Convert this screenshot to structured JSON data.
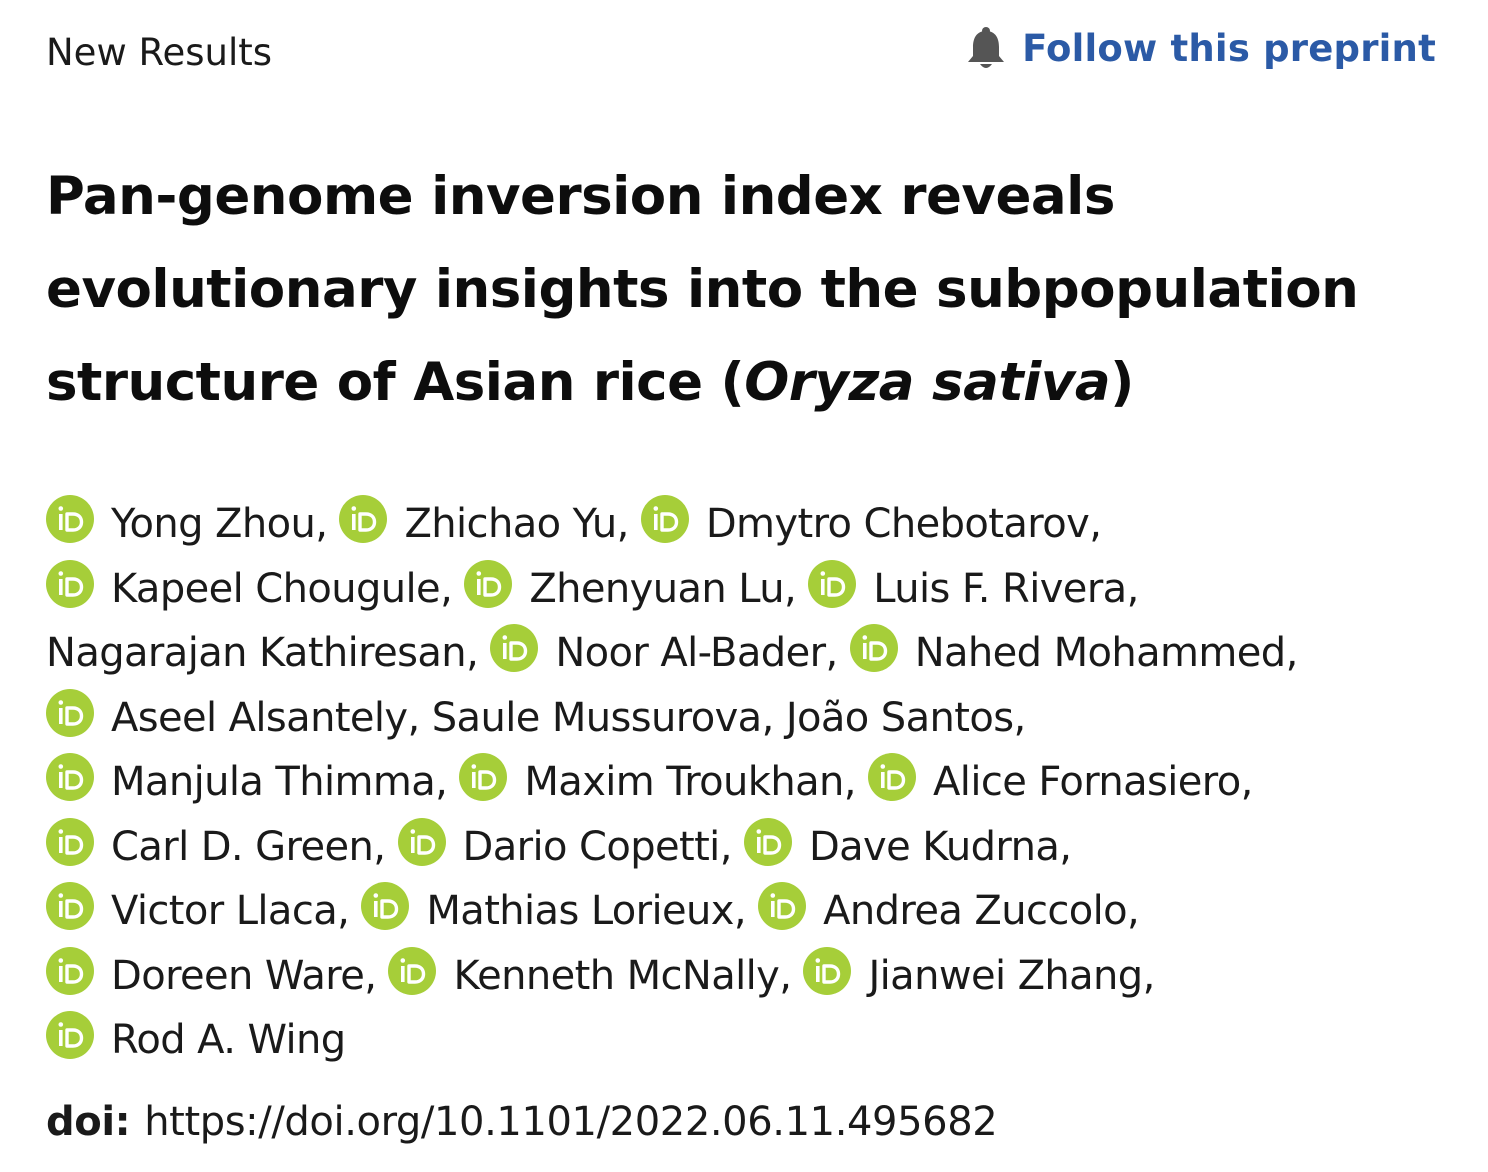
{
  "header": {
    "section_label": "New Results",
    "follow_label": "Follow this preprint"
  },
  "article": {
    "title_main": "Pan-genome inversion index reveals evolutionary insights into the subpopulation structure of Asian rice (",
    "title_italic": "Oryza sativa",
    "title_end": ")"
  },
  "authors": [
    {
      "name": "Yong Zhou",
      "orcid": true,
      "sep": ", "
    },
    {
      "name": "Zhichao Yu",
      "orcid": true,
      "sep": ", "
    },
    {
      "name": "Dmytro Chebotarov",
      "orcid": true,
      "sep": ", "
    },
    {
      "name": "Kapeel Chougule",
      "orcid": true,
      "sep": ", "
    },
    {
      "name": "Zhenyuan Lu",
      "orcid": true,
      "sep": ", "
    },
    {
      "name": "Luis F. Rivera",
      "orcid": true,
      "sep": ", "
    },
    {
      "name": "Nagarajan Kathiresan",
      "orcid": false,
      "sep": ", "
    },
    {
      "name": "Noor Al-Bader",
      "orcid": true,
      "sep": ", "
    },
    {
      "name": "Nahed Mohammed",
      "orcid": true,
      "sep": ", "
    },
    {
      "name": "Aseel Alsantely",
      "orcid": true,
      "sep": ", "
    },
    {
      "name": "Saule Mussurova",
      "orcid": false,
      "sep": ", "
    },
    {
      "name": "João Santos",
      "orcid": false,
      "sep": ", "
    },
    {
      "name": "Manjula Thimma",
      "orcid": true,
      "sep": ", "
    },
    {
      "name": "Maxim Troukhan",
      "orcid": true,
      "sep": ", "
    },
    {
      "name": "Alice Fornasiero",
      "orcid": true,
      "sep": ", "
    },
    {
      "name": "Carl D. Green",
      "orcid": true,
      "sep": ", "
    },
    {
      "name": "Dario Copetti",
      "orcid": true,
      "sep": ", "
    },
    {
      "name": "Dave Kudrna",
      "orcid": true,
      "sep": ", "
    },
    {
      "name": "Victor Llaca",
      "orcid": true,
      "sep": ", "
    },
    {
      "name": "Mathias Lorieux",
      "orcid": true,
      "sep": ", "
    },
    {
      "name": "Andrea Zuccolo",
      "orcid": true,
      "sep": ", "
    },
    {
      "name": "Doreen Ware",
      "orcid": true,
      "sep": ", "
    },
    {
      "name": "Kenneth McNally",
      "orcid": true,
      "sep": ", "
    },
    {
      "name": "Jianwei Zhang",
      "orcid": true,
      "sep": ", "
    },
    {
      "name": "Rod A. Wing",
      "orcid": true,
      "sep": ""
    }
  ],
  "author_line_breaks_after": [
    2,
    5,
    8,
    11,
    14,
    17,
    20,
    23
  ],
  "doi": {
    "label": "doi:",
    "url": "https://doi.org/10.1101/2022.06.11.495682"
  },
  "colors": {
    "link_blue": "#2b5aa6",
    "orcid_green": "#a6ce39",
    "bell_gray": "#555555"
  },
  "icons": {
    "follow": "bell-icon",
    "author_id": "orcid-icon"
  }
}
